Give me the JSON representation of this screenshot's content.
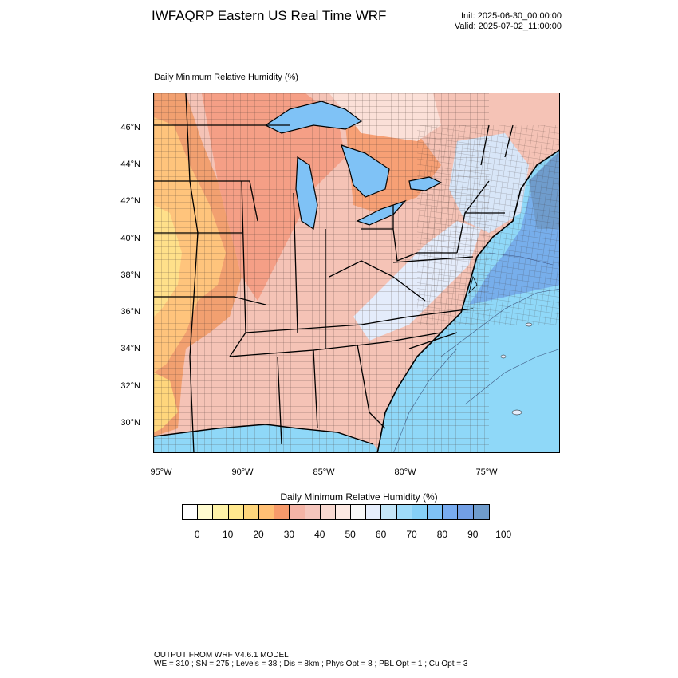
{
  "header": {
    "title": "IWFAQRP Eastern US Real Time WRF",
    "init": "Init: 2025-06-30_00:00:00",
    "valid": "Valid: 2025-07-02_11:00:00"
  },
  "plot": {
    "label": "Daily Minimum Relative Humidity   (%)",
    "lat_labels": [
      "46°N",
      "44°N",
      "42°N",
      "40°N",
      "38°N",
      "36°N",
      "34°N",
      "32°N",
      "30°N"
    ],
    "lon_labels": [
      "95°W",
      "90°W",
      "85°W",
      "80°W",
      "75°W"
    ]
  },
  "colorbar": {
    "title": "Daily Minimum Relative Humidity   (%)",
    "colors": [
      "#ffffff",
      "#fffbd0",
      "#fff3a8",
      "#ffe88e",
      "#ffd67c",
      "#ffbf74",
      "#f79a6a",
      "#f4b4a6",
      "#f5c6bd",
      "#f8d9d1",
      "#fce9e3",
      "#f8f8f8",
      "#e6eefc",
      "#c3e6f8",
      "#9fdcfa",
      "#86d0f7",
      "#7fc2f6",
      "#78acf0",
      "#729fe5",
      "#6f9ccc"
    ],
    "tick_labels": [
      "0",
      "10",
      "20",
      "30",
      "40",
      "50",
      "60",
      "70",
      "80",
      "90",
      "100"
    ]
  },
  "footer": {
    "line1": "OUTPUT FROM WRF V4.6.1 MODEL",
    "line2": "WE = 310 ; SN = 275 ; Levels = 38 ; Dis = 8km ; Phys Opt = 8 ; PBL Opt = 1 ; Cu Opt = 3"
  }
}
